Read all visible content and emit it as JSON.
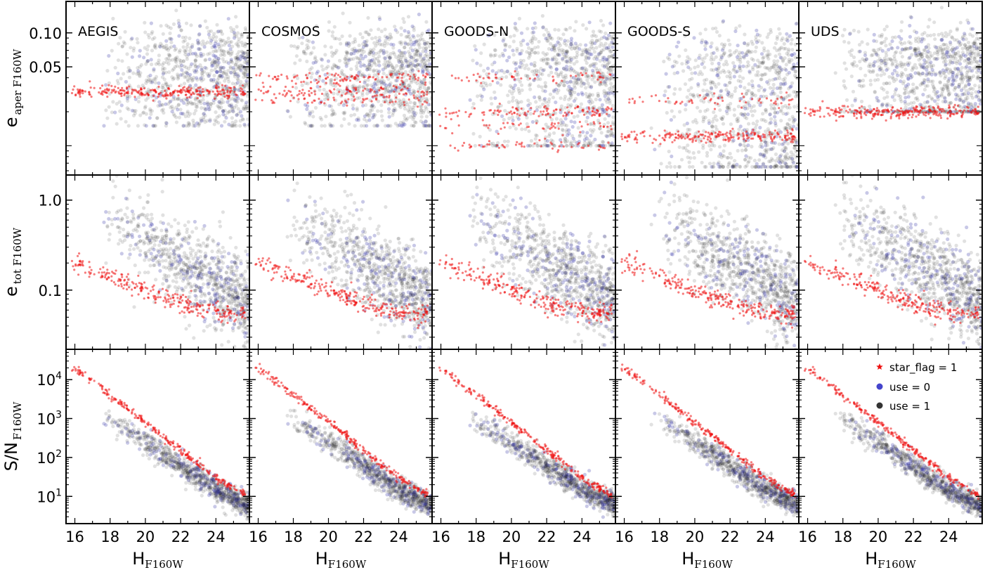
{
  "chart_data": {
    "type": "scatter",
    "fields": [
      "AEGIS",
      "COSMOS",
      "GOODS-N",
      "GOODS-S",
      "UDS"
    ],
    "x_axis": {
      "label_main": "H",
      "label_sub": "F160W",
      "range": [
        15.5,
        25.9
      ],
      "ticks": [
        16,
        18,
        20,
        22,
        24
      ],
      "tick_labels": [
        "16",
        "18",
        "20",
        "22",
        "24"
      ]
    },
    "rows": [
      {
        "label_main": "e",
        "label_sub": "aper F160W",
        "scale": "log",
        "range": [
          0.0055,
          0.19
        ],
        "ticks": [
          0.05,
          0.1
        ],
        "tick_labels": [
          "0.05",
          "0.10"
        ]
      },
      {
        "label_main": "e",
        "label_sub": "tot F160W",
        "scale": "log",
        "range": [
          0.022,
          1.9
        ],
        "ticks": [
          0.1,
          1.0
        ],
        "tick_labels": [
          "0.1",
          "1.0"
        ]
      },
      {
        "label_main": "S/N",
        "label_sub": "F160W",
        "scale": "log",
        "range": [
          2.0,
          60000
        ],
        "ticks": [
          10,
          100,
          1000,
          10000
        ],
        "tick_labels": [
          "10",
          "10",
          "10",
          "10"
        ],
        "tick_exponents": [
          "1",
          "2",
          "3",
          "4"
        ]
      }
    ],
    "legend": {
      "placement": "top-right",
      "entries": [
        {
          "label": "star_flag = 1",
          "color": "#ee1111",
          "marker": "star"
        },
        {
          "label": "use = 0",
          "color": "#4444cc",
          "marker": "circle"
        },
        {
          "label": "use = 1",
          "color": "#333333",
          "marker": "circle"
        }
      ]
    },
    "series_colors": {
      "stars": "#ee1111",
      "use0": "#3a3aa8",
      "use1": "#1a1a1a"
    },
    "trends": {
      "stars_aper_levels": [
        [
          0.03,
          0.03,
          0.03,
          0.03,
          0.03
        ],
        [
          0.03,
          0.04,
          0.04,
          0.03,
          0.025
        ],
        [
          0.01,
          0.02,
          0.04,
          0.015,
          0.02
        ],
        [
          0.012,
          0.012,
          0.012,
          0.025,
          0.012
        ],
        [
          0.02,
          0.02,
          0.02,
          0.02,
          0.02
        ]
      ],
      "galaxy_aper_levels": [
        [
          0.02,
          0.03,
          0.045,
          0.06,
          0.08
        ],
        [
          0.02,
          0.03,
          0.045,
          0.06,
          0.08
        ],
        [
          0.012,
          0.025,
          0.04,
          0.06,
          0.075
        ],
        [
          0.007,
          0.013,
          0.025,
          0.045,
          0.07
        ],
        [
          0.02,
          0.03,
          0.045,
          0.065,
          0.07
        ]
      ],
      "aper_floor": [
        0.015,
        0.015,
        0.01,
        0.0065,
        0.02
      ],
      "stars_tot_anchor": [
        [
          16,
          0.2
        ],
        [
          20,
          0.1
        ],
        [
          22,
          0.07
        ],
        [
          24.5,
          0.055
        ]
      ],
      "galaxy_tot_anchor": [
        [
          18,
          0.6
        ],
        [
          20,
          0.35
        ],
        [
          22,
          0.2
        ],
        [
          24,
          0.12
        ],
        [
          25.8,
          0.07
        ]
      ],
      "stars_sn_anchor": [
        [
          16,
          20000
        ],
        [
          20,
          800
        ],
        [
          24,
          30
        ],
        [
          25.8,
          10
        ]
      ],
      "galaxy_sn_anchor": [
        [
          18,
          900
        ],
        [
          20,
          250
        ],
        [
          22,
          60
        ],
        [
          24,
          15
        ],
        [
          25.8,
          6
        ]
      ]
    }
  }
}
